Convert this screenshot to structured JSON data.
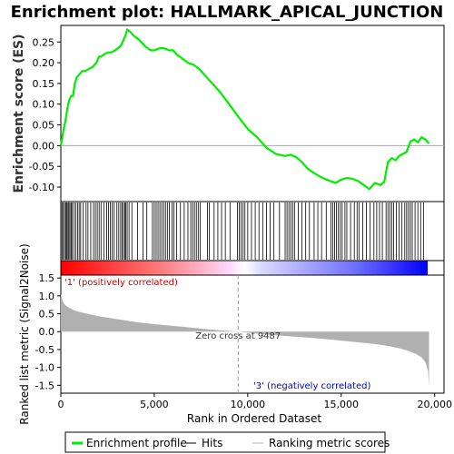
{
  "title": "Enrichment plot: HALLMARK_APICAL_JUNCTION",
  "colors": {
    "enrichment": "#00ee00",
    "hits": "#000000",
    "metric_fill": "#b0b0b0",
    "positive_text": "#cc0000",
    "negative_text": "#0000cc",
    "zero_line": "#aaaaaa"
  },
  "chart_data": [
    {
      "type": "line",
      "panel": "enrichment",
      "ylabel": "Enrichment score (ES)",
      "xlim": [
        0,
        20500
      ],
      "ylim": [
        -0.135,
        0.29
      ],
      "yticks": [
        -0.1,
        -0.05,
        0.0,
        0.05,
        0.1,
        0.15,
        0.2,
        0.25
      ],
      "ytick_labels": [
        "-0.10",
        "-0.05",
        "0.00",
        "0.05",
        "0.10",
        "0.15",
        "0.20",
        "0.25"
      ],
      "series": [
        {
          "name": "Enrichment profile",
          "x": [
            0,
            80,
            150,
            250,
            350,
            450,
            550,
            650,
            750,
            850,
            950,
            1050,
            1150,
            1300,
            1500,
            1700,
            1900,
            2050,
            2150,
            2300,
            2500,
            2700,
            2900,
            3050,
            3200,
            3350,
            3450,
            3550,
            3700,
            3900,
            4200,
            4500,
            4800,
            5000,
            5300,
            5500,
            5800,
            6000,
            6200,
            6500,
            6800,
            7100,
            7400,
            7700,
            8000,
            8500,
            9000,
            9487,
            10000,
            10500,
            11000,
            11500,
            12000,
            12300,
            12600,
            12900,
            13200,
            13500,
            13800,
            14100,
            14400,
            14700,
            15000,
            15300,
            15600,
            15900,
            16200,
            16500,
            16800,
            17100,
            17300,
            17500,
            17700,
            17900,
            18100,
            18300,
            18500,
            18700,
            18900,
            19100,
            19300,
            19500,
            19700
          ],
          "values": [
            0.0,
            0.02,
            0.04,
            0.06,
            0.09,
            0.11,
            0.12,
            0.12,
            0.15,
            0.165,
            0.17,
            0.175,
            0.18,
            0.18,
            0.185,
            0.19,
            0.2,
            0.215,
            0.215,
            0.22,
            0.225,
            0.225,
            0.23,
            0.235,
            0.24,
            0.255,
            0.265,
            0.28,
            0.275,
            0.265,
            0.255,
            0.24,
            0.23,
            0.23,
            0.235,
            0.235,
            0.23,
            0.23,
            0.22,
            0.21,
            0.2,
            0.195,
            0.185,
            0.17,
            0.155,
            0.13,
            0.1,
            0.07,
            0.04,
            0.02,
            -0.005,
            -0.02,
            -0.025,
            -0.022,
            -0.028,
            -0.04,
            -0.055,
            -0.065,
            -0.073,
            -0.08,
            -0.085,
            -0.09,
            -0.082,
            -0.078,
            -0.08,
            -0.085,
            -0.095,
            -0.105,
            -0.09,
            -0.095,
            -0.088,
            -0.04,
            -0.03,
            -0.035,
            -0.025,
            -0.02,
            -0.015,
            0.01,
            0.015,
            0.008,
            0.02,
            0.015,
            0.005
          ]
        }
      ]
    },
    {
      "type": "scatter",
      "panel": "hits",
      "series": [
        {
          "name": "Hits",
          "x": [
            60,
            130,
            200,
            260,
            320,
            380,
            430,
            490,
            550,
            610,
            700,
            800,
            900,
            980,
            1060,
            1200,
            1350,
            1450,
            1600,
            1750,
            1850,
            1950,
            2050,
            2150,
            2300,
            2450,
            2550,
            2650,
            2750,
            2850,
            3000,
            3100,
            3200,
            3280,
            3350,
            3420,
            3480,
            3550,
            3650,
            3800,
            4100,
            4400,
            4600,
            4900,
            5000,
            5100,
            5200,
            5300,
            5400,
            5500,
            5600,
            5700,
            5800,
            5950,
            6050,
            6200,
            6400,
            6600,
            6800,
            6950,
            7050,
            7150,
            7250,
            7350,
            7450,
            7850,
            7950,
            8200,
            8400,
            8600,
            8800,
            9050,
            9450,
            9550,
            9650,
            9750,
            9850,
            10000,
            10200,
            10400,
            10600,
            10800,
            11000,
            11200,
            11400,
            11700,
            12000,
            12100,
            12200,
            12300,
            12400,
            12500,
            12700,
            12900,
            13100,
            13300,
            13550,
            13750,
            13950,
            14200,
            14450,
            14550,
            14650,
            14750,
            14850,
            14950,
            15050,
            15200,
            15300,
            15500,
            15700,
            15850,
            15950,
            16150,
            16350,
            16550,
            16750,
            16900,
            17050,
            17200,
            17400,
            17500,
            17600,
            17700,
            17800,
            17950,
            18100,
            18250,
            18400,
            18500,
            18600,
            18700,
            18800,
            18950,
            19100,
            19250,
            19400
          ]
        },
        {
          "name": "Ranked list metric (Signal2Noise)",
          "x": [
            0,
            100,
            200,
            400,
            700,
            1000,
            1500,
            2000,
            3000,
            4000,
            5000,
            6000,
            7000,
            8000,
            9000,
            9487,
            10000,
            11000,
            12000,
            13000,
            14000,
            15000,
            16000,
            17000,
            17500,
            18000,
            18500,
            19000,
            19300,
            19500,
            19650,
            19700
          ],
          "values": [
            1.05,
            0.85,
            0.76,
            0.68,
            0.6,
            0.55,
            0.49,
            0.43,
            0.35,
            0.27,
            0.21,
            0.16,
            0.11,
            0.06,
            0.02,
            0.0,
            -0.03,
            -0.08,
            -0.12,
            -0.16,
            -0.2,
            -0.25,
            -0.3,
            -0.36,
            -0.4,
            -0.45,
            -0.52,
            -0.62,
            -0.72,
            -0.85,
            -1.1,
            -1.55
          ]
        }
      ]
    },
    {
      "type": "area",
      "panel": "metric",
      "xlabel": "Rank in Ordered Dataset",
      "ylabel": "Ranked list metric (Signal2Noise)",
      "xlim": [
        0,
        20500
      ],
      "ylim": [
        -1.72,
        1.58
      ],
      "xticks": [
        0,
        5000,
        10000,
        15000,
        20000
      ],
      "xtick_labels": [
        "0",
        "5,000",
        "10,000",
        "15,000",
        "20,000"
      ],
      "yticks": [
        -1.5,
        -1.0,
        -0.5,
        0.0,
        0.5,
        1.0,
        1.5
      ],
      "ytick_labels": [
        "-1.5",
        "-1.0",
        "-0.5",
        "0.0",
        "0.5",
        "1.0",
        "1.5"
      ],
      "zero_cross": 9487,
      "zero_cross_label": "Zero cross at 9487",
      "positive_label": "'1' (positively correlated)",
      "negative_label": "'3' (negatively correlated)"
    }
  ],
  "legend": {
    "items": [
      {
        "label": "Enrichment profile",
        "color": "#00ee00"
      },
      {
        "label": "Hits",
        "color": "#000000"
      },
      {
        "label": "Ranking metric scores",
        "color": "#b0b0b0"
      }
    ]
  }
}
